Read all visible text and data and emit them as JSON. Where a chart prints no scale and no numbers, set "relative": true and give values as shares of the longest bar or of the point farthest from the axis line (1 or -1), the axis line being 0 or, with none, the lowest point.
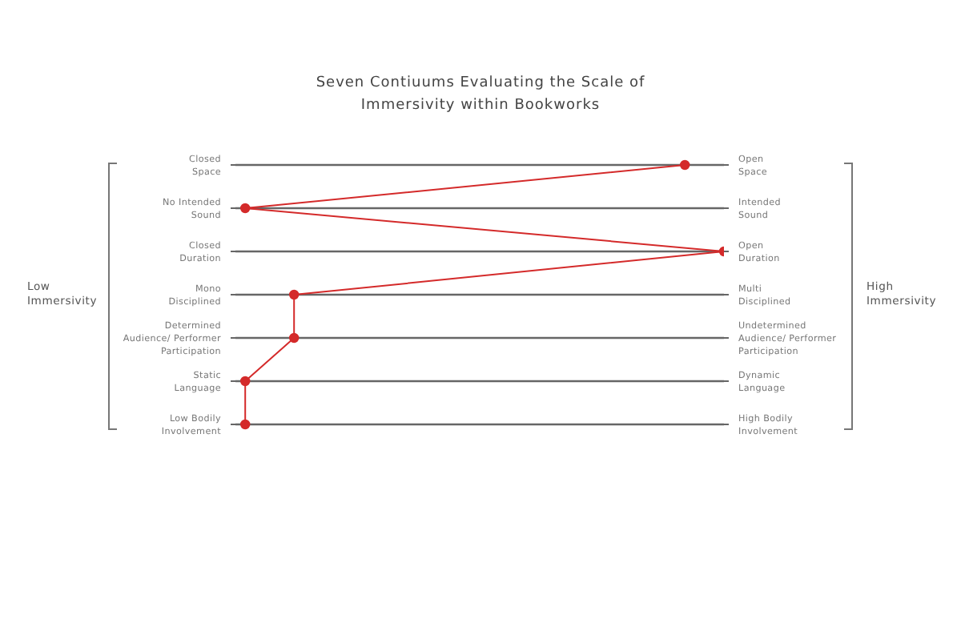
{
  "chart_data": {
    "type": "line",
    "title": "Seven Contiuums Evaluating the Scale of\nImmersivity within Bookworks",
    "categories": [
      "Closed\nSpace",
      "No Intended\nSound",
      "Closed\nDuration",
      "Mono\nDisciplined",
      "Determined\nAudience/ Performer\nParticipation",
      "Static\nLanguage",
      "Low Bodily\nInvolvement"
    ],
    "annotations": [
      "Open\nSpace",
      "Intended\nSound",
      "Open\nDuration",
      "Multi\nDisciplined",
      "Undetermined\nAudience/ Performer\nParticipation",
      "Dynamic\nLanguage",
      "High Bodily\nInvolvement",
      "Low Immersivity",
      "High Immersivity"
    ],
    "orientation": "horizontal",
    "relative": true,
    "values": [
      0.92,
      0.02,
      1,
      0.12,
      0.12,
      0.02,
      0.02
    ],
    "color": "#d42a2a",
    "marker": "circle",
    "line_style": "solid",
    "grid": "y"
  }
}
